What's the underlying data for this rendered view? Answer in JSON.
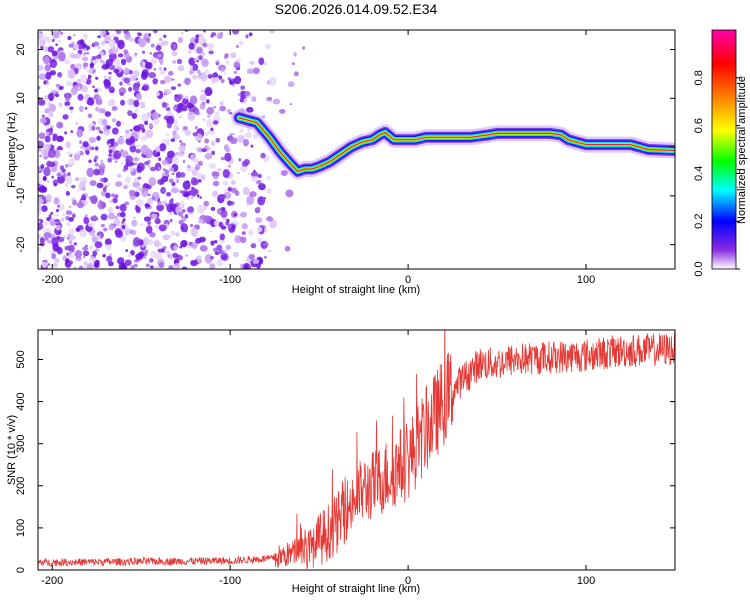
{
  "title": "S206.2026.014.09.52.E34",
  "chart_data": [
    {
      "type": "heatmap",
      "xlabel": "Height of straight line (km)",
      "ylabel": "Frequency (Hz)",
      "xlim": [
        -208,
        150
      ],
      "ylim": [
        -25,
        24
      ],
      "xticks": [
        -200,
        -100,
        0,
        100
      ],
      "yticks": [
        -20,
        -10,
        0,
        10,
        20
      ],
      "ridge": {
        "x": [
          -95,
          -85,
          -78,
          -72,
          -66,
          -62,
          -58,
          -54,
          -50,
          -44,
          -38,
          -32,
          -26,
          -20,
          -16,
          -13,
          -8,
          -2,
          4,
          10,
          20,
          35,
          45,
          50,
          60,
          70,
          80,
          86,
          90,
          95,
          100,
          110,
          125,
          135,
          150
        ],
        "y": [
          6,
          5,
          2,
          -1,
          -3.5,
          -5,
          -4.5,
          -4.5,
          -4,
          -3,
          -1.5,
          0,
          1,
          1.5,
          2.5,
          3,
          1.5,
          1.5,
          1.5,
          2,
          2,
          2,
          2.5,
          2.8,
          2.8,
          2.8,
          2.8,
          2.5,
          1.5,
          1,
          0.5,
          0.5,
          0.5,
          -0.5,
          -0.7
        ]
      }
    },
    {
      "type": "colorbar",
      "label": "Normalized spectral amplitude",
      "range": [
        0,
        1
      ],
      "ticks": [
        "0.0",
        "0.2",
        "0.4",
        "0.6",
        "0.8"
      ],
      "colors": [
        "#ffffff",
        "#8a2be2",
        "#0000ff",
        "#00ffff",
        "#00ff00",
        "#ffff00",
        "#ff8000",
        "#ff0000",
        "#ff00aa"
      ]
    },
    {
      "type": "line",
      "color": "#e53935",
      "xlabel": "Height of straight line (km)",
      "ylabel": "SNR (10 * v/v)",
      "xlim": [
        -208,
        150
      ],
      "ylim": [
        0,
        570
      ],
      "xticks": [
        -200,
        -100,
        0,
        100
      ],
      "yticks": [
        0,
        100,
        200,
        300,
        400,
        500
      ],
      "trend": {
        "x": [
          -208,
          -150,
          -100,
          -75,
          -65,
          -60,
          -55,
          -50,
          -45,
          -40,
          -35,
          -30,
          -25,
          -20,
          -10,
          0,
          10,
          20,
          30,
          40,
          50,
          60,
          80,
          100,
          120,
          150
        ],
        "y": [
          18,
          20,
          22,
          28,
          40,
          60,
          40,
          70,
          90,
          110,
          140,
          170,
          190,
          200,
          230,
          260,
          330,
          400,
          450,
          490,
          490,
          500,
          505,
          510,
          520,
          525
        ]
      }
    }
  ]
}
